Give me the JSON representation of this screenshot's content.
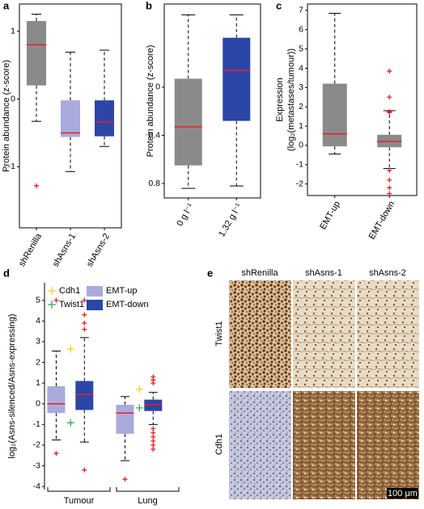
{
  "chart_data": [
    {
      "type": "box",
      "panel": "a",
      "ylabel": "Protein abundance (z-score)",
      "categories": [
        "shRenilla",
        "shAsns-1",
        "shAsns-2"
      ],
      "colors": [
        "#8a8a8a",
        "#a9aadb",
        "#2b46a6"
      ],
      "values": [
        {
          "min": -0.33,
          "q1": 0.2,
          "median": 0.8,
          "q3": 1.15,
          "max": 1.25,
          "outliers": [
            -1.28
          ]
        },
        {
          "min": -1.07,
          "q1": -0.56,
          "median": -0.5,
          "q3": -0.02,
          "max": 0.69
        },
        {
          "min": -0.7,
          "q1": -0.55,
          "median": -0.34,
          "q3": -0.02,
          "max": 0.72
        }
      ],
      "ylim": [
        -1.9,
        1.4
      ],
      "yticks": [
        -1,
        0,
        1
      ]
    },
    {
      "type": "box",
      "panel": "b",
      "ylabel": "Protein abundance (z-score)",
      "categories": [
        "0 g l⁻¹",
        "1.32 g l⁻¹"
      ],
      "colors": [
        "#8a8a8a",
        "#2b46a6"
      ],
      "values": [
        {
          "min": -0.84,
          "q1": -0.65,
          "median": -0.33,
          "q3": 0.07,
          "max": 0.6
        },
        {
          "min": -0.82,
          "q1": -0.28,
          "median": 0.14,
          "q3": 0.41,
          "max": 0.6
        }
      ],
      "ylim": [
        -0.92,
        0.69
      ],
      "yticks": [
        {
          "value": -0.8,
          "label": "0.8"
        },
        {
          "value": -0.4,
          "label": "0.4"
        },
        0
      ]
    },
    {
      "type": "box",
      "panel": "c",
      "ylabel": [
        "Expression",
        "(log₂(metastases/tumour))"
      ],
      "categories": [
        "EMT-up",
        "EMT-down"
      ],
      "colors": [
        "#8a8a8a",
        "#8a8a8a"
      ],
      "values": [
        {
          "min": -0.45,
          "q1": -0.05,
          "median": 0.6,
          "q3": 3.2,
          "max": 6.85
        },
        {
          "min": -1.2,
          "q1": -0.1,
          "median": 0.2,
          "q3": 0.55,
          "max": 1.8,
          "outliers": [
            3.85,
            2.5,
            1.75,
            1.7,
            -1.3,
            -1.8,
            -2.2,
            -2.5
          ]
        }
      ],
      "ylim": [
        -2.6,
        7.33
      ],
      "yticks": [
        -2,
        -1,
        0,
        1,
        2,
        3,
        4,
        5,
        6,
        7
      ]
    },
    {
      "type": "box",
      "panel": "d",
      "ylabel": "log₂(Asns-silenced/Asns-expressing)",
      "categories": [
        "Tumour",
        "Lung"
      ],
      "series": [
        {
          "name": "Cdh1",
          "color": "#f2d21b",
          "marker": "plus",
          "values": [
            2.65,
            0.7
          ]
        },
        {
          "name": "Twist1",
          "color": "#2fae4a",
          "marker": "plus",
          "values": [
            -0.92,
            -0.2
          ]
        },
        {
          "name": "EMT-up",
          "color": "#a9aadb",
          "values": [
            {
              "min": -1.75,
              "q1": -0.45,
              "median": 0,
              "q3": 0.85,
              "max": 2.55,
              "outliers": [
                5.0,
                -2.4
              ]
            },
            {
              "min": -2.75,
              "q1": -1.45,
              "median": -0.45,
              "q3": -0.05,
              "max": 0.35,
              "outliers": [
                -3.65
              ]
            }
          ]
        },
        {
          "name": "EMT-down",
          "color": "#2b46a6",
          "values": [
            {
              "min": -1.85,
              "q1": -0.3,
              "median": 0.45,
              "q3": 1.1,
              "max": 3.2,
              "outliers": [
                5.0,
                4.3,
                3.9,
                3.6,
                -3.2
              ]
            },
            {
              "min": -1.0,
              "q1": -0.35,
              "median": -0.05,
              "q3": 0.2,
              "max": 0.55,
              "outliers": [
                1.3,
                1.15,
                1.0,
                -1.2,
                -1.4,
                -1.6,
                -1.8,
                -2.0,
                -2.2
              ]
            }
          ]
        }
      ],
      "ylim": [
        -4.15,
        5.85
      ],
      "yticks": [
        -4,
        -3,
        -2,
        -1,
        0,
        1,
        2,
        3,
        4,
        5
      ]
    }
  ],
  "panel_e": {
    "label": "e",
    "columns": [
      "shRenilla",
      "shAsns-1",
      "shAsns-2"
    ],
    "rows": [
      "Twist1",
      "Cdh1"
    ],
    "scale_bar": "100 μm"
  }
}
